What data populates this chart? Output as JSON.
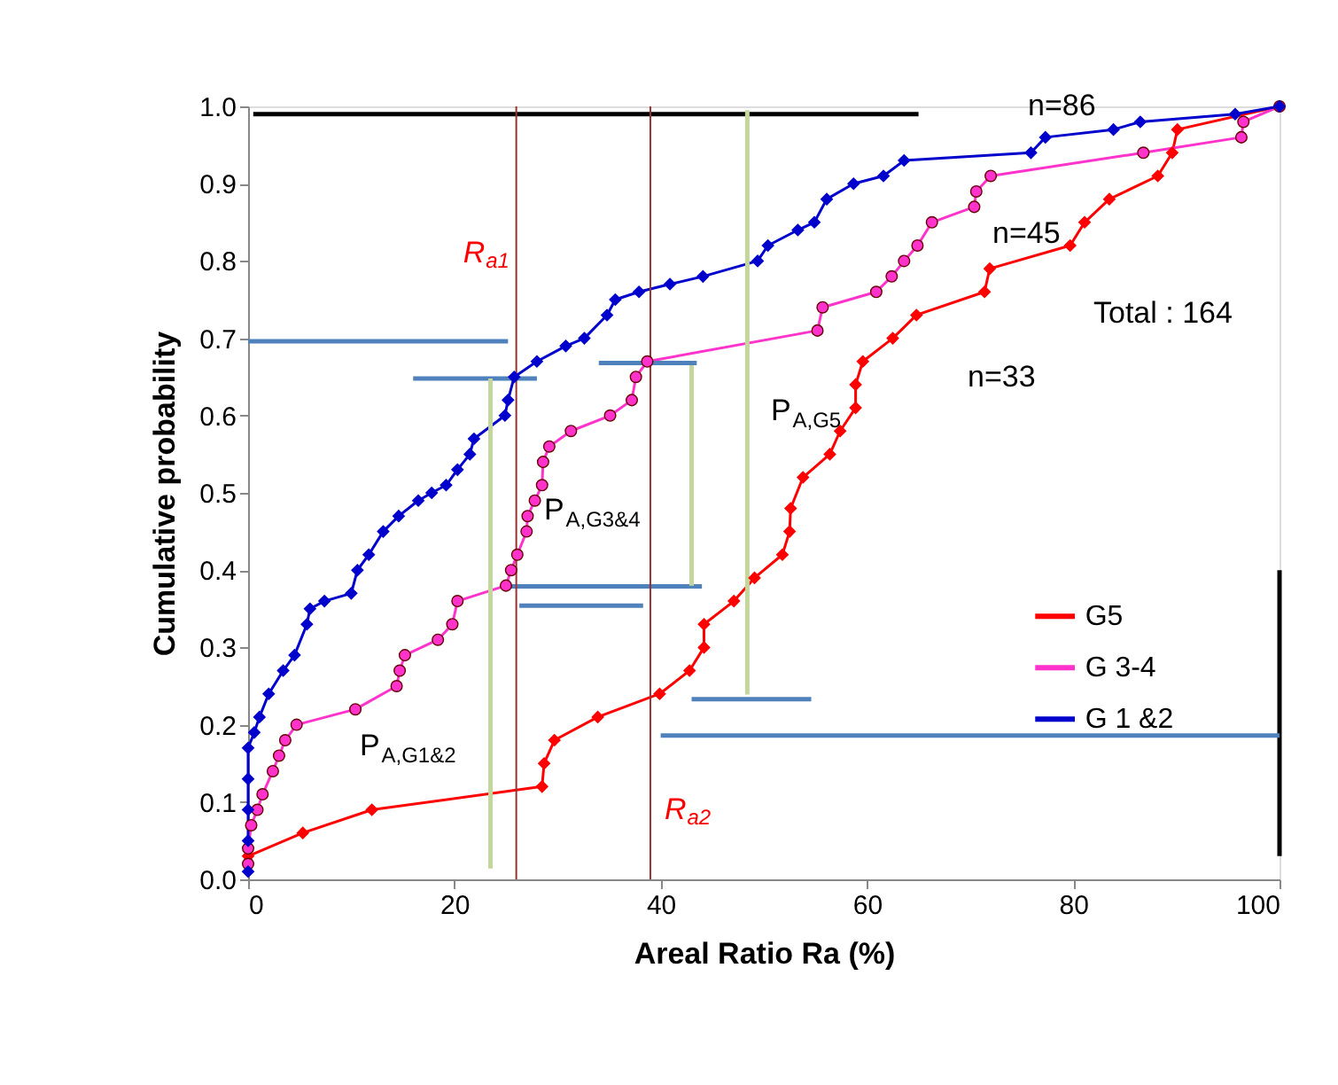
{
  "chart_data": {
    "type": "line",
    "xlabel": "Areal Ratio Ra (%)",
    "ylabel": "Cumulative probability",
    "xlim": [
      0,
      100
    ],
    "xticks": [
      0,
      20,
      40,
      60,
      80,
      100
    ],
    "ylim": [
      0,
      1.0
    ],
    "yticks": [
      {
        "value": 0,
        "label": "0.0"
      },
      {
        "value": 0.1,
        "label": "0.1"
      },
      {
        "value": 0.2,
        "label": "0.2"
      },
      {
        "value": 0.3,
        "label": "0.3"
      },
      {
        "value": 0.4,
        "label": "0.4"
      },
      {
        "value": 0.5,
        "label": "0.5"
      },
      {
        "value": 0.6,
        "label": "0.6"
      },
      {
        "value": 0.7,
        "label": "0.7"
      },
      {
        "value": 0.8,
        "label": "0.8"
      },
      {
        "value": 0.9,
        "label": "0.9"
      },
      {
        "value": 1.0,
        "label": "1.0"
      }
    ],
    "legend": "right",
    "series": [
      {
        "name": "G5",
        "color": "#ff0000",
        "marker": "diamond",
        "x": [
          0,
          5.3,
          12.0,
          28.5,
          28.7,
          29.7,
          33.9,
          39.9,
          42.8,
          44.2,
          44.2,
          47.1,
          49.1,
          51.8,
          52.5,
          52.6,
          53.8,
          56.4,
          57.4,
          58.9,
          58.9,
          59.6,
          62.5,
          64.8,
          71.4,
          71.9,
          79.7,
          81.1,
          83.5,
          88.2,
          89.6,
          90.1,
          100
        ],
        "values": [
          0.03,
          0.06,
          0.09,
          0.12,
          0.15,
          0.18,
          0.21,
          0.24,
          0.27,
          0.3,
          0.33,
          0.36,
          0.39,
          0.42,
          0.45,
          0.48,
          0.52,
          0.55,
          0.58,
          0.61,
          0.64,
          0.67,
          0.7,
          0.73,
          0.76,
          0.79,
          0.82,
          0.85,
          0.88,
          0.91,
          0.94,
          0.97,
          1.0
        ]
      },
      {
        "name": "G 3-4",
        "color": "#ff33cc",
        "marker": "circle",
        "x": [
          0,
          0,
          0.3,
          0.9,
          1.4,
          2.4,
          3.0,
          3.6,
          4.7,
          10.4,
          14.4,
          14.7,
          15.2,
          18.4,
          19.8,
          20.3,
          25.0,
          25.5,
          26.1,
          27.0,
          27.1,
          27.8,
          28.5,
          28.6,
          29.2,
          31.3,
          35.1,
          37.2,
          37.6,
          38.7,
          55.2,
          55.7,
          60.9,
          62.4,
          63.6,
          64.9,
          66.3,
          70.4,
          70.6,
          72.0,
          86.8,
          96.3,
          96.5,
          100
        ],
        "values": [
          0.02,
          0.04,
          0.07,
          0.09,
          0.11,
          0.14,
          0.16,
          0.18,
          0.2,
          0.22,
          0.25,
          0.27,
          0.29,
          0.31,
          0.33,
          0.36,
          0.38,
          0.4,
          0.42,
          0.45,
          0.47,
          0.49,
          0.51,
          0.54,
          0.56,
          0.58,
          0.6,
          0.62,
          0.65,
          0.67,
          0.71,
          0.74,
          0.76,
          0.78,
          0.8,
          0.82,
          0.85,
          0.87,
          0.89,
          0.91,
          0.94,
          0.96,
          0.98,
          1.0
        ]
      },
      {
        "name": "G 1 &2",
        "color": "#0000cc",
        "marker": "diamond",
        "x": [
          0,
          0,
          0,
          0,
          0,
          0.6,
          1.1,
          2.0,
          3.4,
          4.5,
          5.7,
          6.0,
          7.4,
          10.0,
          10.6,
          11.7,
          13.1,
          14.6,
          16.5,
          17.8,
          19.2,
          20.3,
          21.5,
          21.9,
          24.9,
          25.2,
          25.8,
          28.0,
          30.8,
          32.6,
          34.8,
          35.6,
          37.9,
          40.9,
          44.1,
          49.4,
          50.4,
          53.3,
          54.9,
          56.1,
          58.7,
          61.6,
          63.6,
          75.9,
          77.3,
          83.9,
          86.5,
          95.7,
          100
        ],
        "values": [
          0.01,
          0.05,
          0.09,
          0.13,
          0.17,
          0.19,
          0.21,
          0.24,
          0.27,
          0.29,
          0.33,
          0.35,
          0.36,
          0.37,
          0.4,
          0.42,
          0.45,
          0.47,
          0.49,
          0.5,
          0.51,
          0.53,
          0.55,
          0.57,
          0.6,
          0.62,
          0.65,
          0.67,
          0.69,
          0.7,
          0.73,
          0.75,
          0.76,
          0.77,
          0.78,
          0.8,
          0.82,
          0.84,
          0.85,
          0.88,
          0.9,
          0.91,
          0.93,
          0.94,
          0.96,
          0.97,
          0.98,
          0.99,
          1.0
        ]
      },
      {
        "color": "#000000",
        "marker": "none",
        "x": [
          0.5,
          65
        ],
        "values": [
          0.99,
          0.99
        ]
      },
      {
        "color": "#000000",
        "marker": "none",
        "x": [
          100,
          100
        ],
        "values": [
          0.03,
          0.4
        ]
      },
      {
        "color": "#4f81bd",
        "marker": "none",
        "x": [
          16,
          28
        ],
        "values": [
          0.648,
          0.648
        ]
      },
      {
        "color": "#4f81bd",
        "marker": "none",
        "x": [
          34,
          43.5
        ],
        "values": [
          0.668,
          0.668
        ]
      },
      {
        "color": "#4f81bd",
        "marker": "none",
        "x": [
          25.2,
          44
        ],
        "values": [
          0.379,
          0.379
        ]
      },
      {
        "color": "#4f81bd",
        "marker": "none",
        "x": [
          43,
          54.6
        ],
        "values": [
          0.233,
          0.233
        ]
      },
      {
        "color": "#4f81bd",
        "marker": "none",
        "x": [
          0,
          25.2
        ],
        "values": [
          0.696,
          0.696
        ]
      },
      {
        "color": "#4f81bd",
        "marker": "none",
        "x": [
          26.3,
          38.3
        ],
        "values": [
          0.354,
          0.354
        ]
      },
      {
        "color": "#4f81bd",
        "marker": "none",
        "x": [
          40,
          100
        ],
        "values": [
          0.186,
          0.186
        ]
      },
      {
        "color": "#c3d69b",
        "marker": "none",
        "x": [
          23.5,
          23.5
        ],
        "values": [
          0.648,
          0.014
        ]
      },
      {
        "color": "#c3d69b",
        "marker": "none",
        "x": [
          43,
          43
        ],
        "values": [
          0.665,
          0.38
        ]
      },
      {
        "color": "#c3d69b",
        "marker": "none",
        "x": [
          48.4,
          48.4
        ],
        "values": [
          0.995,
          0.239
        ]
      }
    ],
    "ref_lines": [
      {
        "axis": "x",
        "value": 26,
        "label": "R$_{a1}$",
        "color": "#993333"
      },
      {
        "axis": "x",
        "value": 39,
        "label": "R$_{a2}$",
        "color": "#993333"
      }
    ],
    "annotations": [
      "n=86",
      "n=45",
      "Total : 164",
      "n=33",
      "P$_{A,G5}$",
      "P$_{A,G3&4}$",
      "P$_{A,G1&2}$"
    ]
  }
}
